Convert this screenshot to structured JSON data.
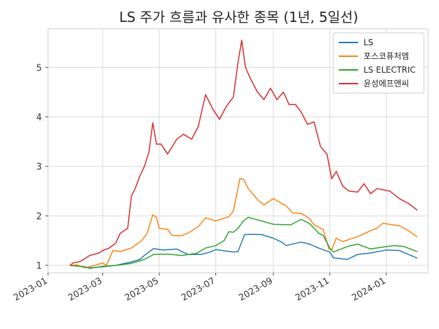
{
  "chart_data": {
    "type": "line",
    "title": "LS 주가 흐름과 유사한 종목 (1년, 5일선)",
    "xlabel": "",
    "ylabel": "",
    "grid": true,
    "legend_position": "top-right",
    "x_range": [
      "2023-01-01",
      "2024-02-15"
    ],
    "ylim": [
      0.85,
      5.78
    ],
    "x_ticks": [
      {
        "date": "2023-01-01",
        "label": "2023-01"
      },
      {
        "date": "2023-03-01",
        "label": "2023-03"
      },
      {
        "date": "2023-05-01",
        "label": "2023-05"
      },
      {
        "date": "2023-07-01",
        "label": "2023-07"
      },
      {
        "date": "2023-09-01",
        "label": "2023-09"
      },
      {
        "date": "2023-11-01",
        "label": "2023-11"
      },
      {
        "date": "2024-01-01",
        "label": "2024-01"
      }
    ],
    "y_ticks": [
      1,
      2,
      3,
      4,
      5
    ],
    "series": [
      {
        "name": "LS",
        "color": "#1f77b4",
        "points": [
          [
            "2023-01-25",
            1.0
          ],
          [
            "2023-02-05",
            0.98
          ],
          [
            "2023-02-15",
            0.95
          ],
          [
            "2023-03-01",
            0.97
          ],
          [
            "2023-03-15",
            1.0
          ],
          [
            "2023-04-01",
            1.07
          ],
          [
            "2023-04-10",
            1.12
          ],
          [
            "2023-04-15",
            1.2
          ],
          [
            "2023-04-25",
            1.34
          ],
          [
            "2023-05-05",
            1.31
          ],
          [
            "2023-05-20",
            1.33
          ],
          [
            "2023-06-01",
            1.22
          ],
          [
            "2023-06-15",
            1.22
          ],
          [
            "2023-06-25",
            1.27
          ],
          [
            "2023-07-01",
            1.32
          ],
          [
            "2023-07-20",
            1.27
          ],
          [
            "2023-07-25",
            1.28
          ],
          [
            "2023-08-01",
            1.62
          ],
          [
            "2023-08-10",
            1.63
          ],
          [
            "2023-08-20",
            1.62
          ],
          [
            "2023-09-01",
            1.55
          ],
          [
            "2023-09-10",
            1.47
          ],
          [
            "2023-09-15",
            1.4
          ],
          [
            "2023-10-01",
            1.47
          ],
          [
            "2023-10-10",
            1.43
          ],
          [
            "2023-10-20",
            1.35
          ],
          [
            "2023-11-01",
            1.27
          ],
          [
            "2023-11-05",
            1.15
          ],
          [
            "2023-11-20",
            1.12
          ],
          [
            "2023-12-01",
            1.22
          ],
          [
            "2023-12-15",
            1.25
          ],
          [
            "2024-01-01",
            1.31
          ],
          [
            "2024-01-15",
            1.3
          ],
          [
            "2024-01-25",
            1.22
          ],
          [
            "2024-02-03",
            1.15
          ]
        ]
      },
      {
        "name": "포스코퓨처엠",
        "color": "#ff7f0e",
        "points": [
          [
            "2023-01-25",
            1.0
          ],
          [
            "2023-02-01",
            1.01
          ],
          [
            "2023-02-10",
            0.95
          ],
          [
            "2023-02-20",
            1.0
          ],
          [
            "2023-03-01",
            1.05
          ],
          [
            "2023-03-05",
            1.0
          ],
          [
            "2023-03-12",
            1.3
          ],
          [
            "2023-03-20",
            1.28
          ],
          [
            "2023-04-01",
            1.35
          ],
          [
            "2023-04-12",
            1.5
          ],
          [
            "2023-04-18",
            1.65
          ],
          [
            "2023-04-24",
            2.02
          ],
          [
            "2023-04-28",
            1.97
          ],
          [
            "2023-05-01",
            1.75
          ],
          [
            "2023-05-10",
            1.73
          ],
          [
            "2023-05-15",
            1.6
          ],
          [
            "2023-05-25",
            1.6
          ],
          [
            "2023-06-01",
            1.65
          ],
          [
            "2023-06-12",
            1.78
          ],
          [
            "2023-06-20",
            1.96
          ],
          [
            "2023-07-01",
            1.9
          ],
          [
            "2023-07-15",
            1.98
          ],
          [
            "2023-07-20",
            2.1
          ],
          [
            "2023-07-27",
            2.75
          ],
          [
            "2023-07-31",
            2.74
          ],
          [
            "2023-08-05",
            2.55
          ],
          [
            "2023-08-15",
            2.33
          ],
          [
            "2023-08-22",
            2.22
          ],
          [
            "2023-09-01",
            2.35
          ],
          [
            "2023-09-15",
            2.2
          ],
          [
            "2023-09-22",
            2.06
          ],
          [
            "2023-10-01",
            2.05
          ],
          [
            "2023-10-10",
            1.95
          ],
          [
            "2023-10-15",
            1.82
          ],
          [
            "2023-10-25",
            1.72
          ],
          [
            "2023-10-31",
            1.34
          ],
          [
            "2023-11-03",
            1.31
          ],
          [
            "2023-11-08",
            1.55
          ],
          [
            "2023-11-15",
            1.48
          ],
          [
            "2023-12-01",
            1.58
          ],
          [
            "2023-12-15",
            1.7
          ],
          [
            "2023-12-22",
            1.75
          ],
          [
            "2023-12-28",
            1.85
          ],
          [
            "2024-01-15",
            1.8
          ],
          [
            "2024-01-25",
            1.7
          ],
          [
            "2024-02-03",
            1.58
          ]
        ]
      },
      {
        "name": "LS ELECTRIC",
        "color": "#2ca02c",
        "points": [
          [
            "2023-01-25",
            1.0
          ],
          [
            "2023-02-10",
            0.97
          ],
          [
            "2023-02-15",
            0.94
          ],
          [
            "2023-03-01",
            0.98
          ],
          [
            "2023-03-15",
            1.0
          ],
          [
            "2023-04-01",
            1.04
          ],
          [
            "2023-04-15",
            1.12
          ],
          [
            "2023-04-25",
            1.22
          ],
          [
            "2023-05-10",
            1.23
          ],
          [
            "2023-05-25",
            1.2
          ],
          [
            "2023-06-10",
            1.24
          ],
          [
            "2023-06-20",
            1.35
          ],
          [
            "2023-07-01",
            1.4
          ],
          [
            "2023-07-10",
            1.5
          ],
          [
            "2023-07-15",
            1.68
          ],
          [
            "2023-07-20",
            1.67
          ],
          [
            "2023-07-25",
            1.75
          ],
          [
            "2023-07-31",
            1.9
          ],
          [
            "2023-08-05",
            1.97
          ],
          [
            "2023-08-15",
            1.92
          ],
          [
            "2023-09-01",
            1.83
          ],
          [
            "2023-09-20",
            1.82
          ],
          [
            "2023-10-01",
            1.93
          ],
          [
            "2023-10-10",
            1.85
          ],
          [
            "2023-10-20",
            1.65
          ],
          [
            "2023-10-25",
            1.6
          ],
          [
            "2023-11-01",
            1.35
          ],
          [
            "2023-11-05",
            1.27
          ],
          [
            "2023-11-20",
            1.38
          ],
          [
            "2023-12-01",
            1.43
          ],
          [
            "2023-12-15",
            1.33
          ],
          [
            "2024-01-01",
            1.38
          ],
          [
            "2024-01-10",
            1.4
          ],
          [
            "2024-01-20",
            1.38
          ],
          [
            "2024-02-03",
            1.28
          ]
        ]
      },
      {
        "name": "윤성에프앤씨",
        "color": "#d62728",
        "points": [
          [
            "2023-01-25",
            1.0
          ],
          [
            "2023-01-28",
            1.05
          ],
          [
            "2023-02-05",
            1.08
          ],
          [
            "2023-02-15",
            1.2
          ],
          [
            "2023-02-25",
            1.25
          ],
          [
            "2023-03-01",
            1.3
          ],
          [
            "2023-03-08",
            1.35
          ],
          [
            "2023-03-15",
            1.45
          ],
          [
            "2023-03-20",
            1.65
          ],
          [
            "2023-03-28",
            1.75
          ],
          [
            "2023-04-01",
            2.4
          ],
          [
            "2023-04-05",
            2.55
          ],
          [
            "2023-04-10",
            2.8
          ],
          [
            "2023-04-15",
            3.0
          ],
          [
            "2023-04-20",
            3.3
          ],
          [
            "2023-04-24",
            3.88
          ],
          [
            "2023-04-28",
            3.45
          ],
          [
            "2023-05-03",
            3.45
          ],
          [
            "2023-05-10",
            3.25
          ],
          [
            "2023-05-15",
            3.4
          ],
          [
            "2023-05-20",
            3.55
          ],
          [
            "2023-05-27",
            3.65
          ],
          [
            "2023-06-05",
            3.55
          ],
          [
            "2023-06-12",
            3.8
          ],
          [
            "2023-06-20",
            4.45
          ],
          [
            "2023-06-28",
            4.15
          ],
          [
            "2023-07-05",
            3.95
          ],
          [
            "2023-07-12",
            4.2
          ],
          [
            "2023-07-20",
            4.4
          ],
          [
            "2023-07-25",
            5.1
          ],
          [
            "2023-07-29",
            5.55
          ],
          [
            "2023-08-02",
            5.0
          ],
          [
            "2023-08-08",
            4.75
          ],
          [
            "2023-08-15",
            4.5
          ],
          [
            "2023-08-22",
            4.35
          ],
          [
            "2023-08-29",
            4.58
          ],
          [
            "2023-09-05",
            4.35
          ],
          [
            "2023-09-12",
            4.5
          ],
          [
            "2023-09-18",
            4.25
          ],
          [
            "2023-09-25",
            4.25
          ],
          [
            "2023-10-01",
            4.1
          ],
          [
            "2023-10-08",
            3.85
          ],
          [
            "2023-10-15",
            3.9
          ],
          [
            "2023-10-22",
            3.4
          ],
          [
            "2023-10-29",
            3.25
          ],
          [
            "2023-11-03",
            2.75
          ],
          [
            "2023-11-08",
            2.9
          ],
          [
            "2023-11-15",
            2.6
          ],
          [
            "2023-11-22",
            2.5
          ],
          [
            "2023-12-01",
            2.48
          ],
          [
            "2023-12-08",
            2.65
          ],
          [
            "2023-12-15",
            2.45
          ],
          [
            "2023-12-22",
            2.55
          ],
          [
            "2024-01-05",
            2.5
          ],
          [
            "2024-01-15",
            2.35
          ],
          [
            "2024-01-25",
            2.25
          ],
          [
            "2024-02-03",
            2.12
          ]
        ]
      }
    ]
  }
}
